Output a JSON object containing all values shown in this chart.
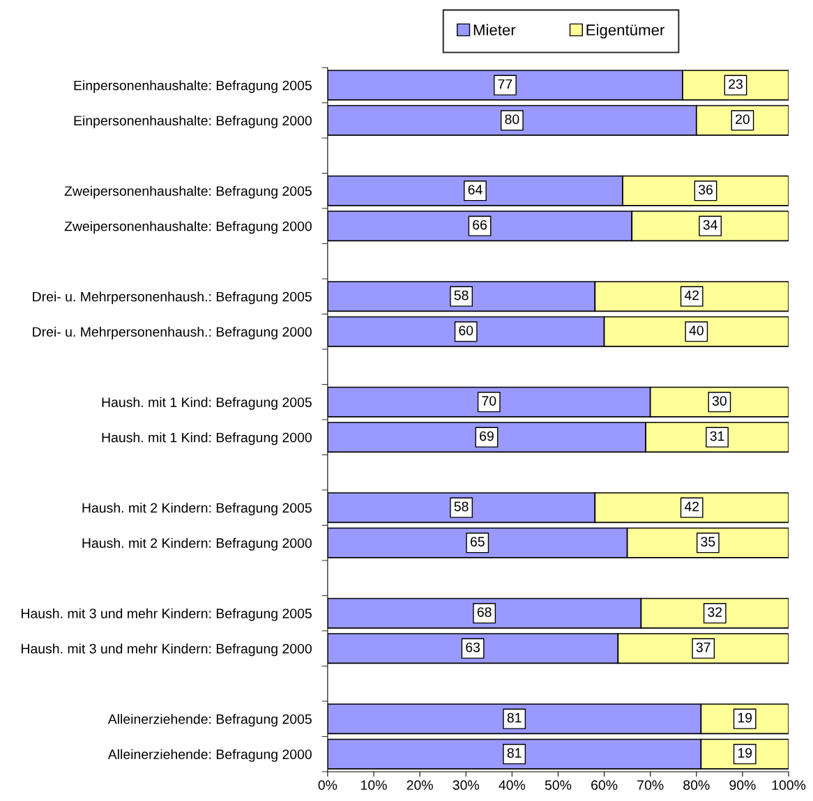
{
  "chart_data": {
    "type": "bar",
    "orientation": "horizontal",
    "stacked": true,
    "data_labels": true,
    "legend": "top",
    "grid": false,
    "categories": [
      "Einpersonenhaushalte: Befragung 2005",
      "Einpersonenhaushalte: Befragung 2000",
      null,
      "Zweipersonenhaushalte: Befragung 2005",
      "Zweipersonenhaushalte: Befragung 2000",
      null,
      "Drei- u. Mehrpersonenhaush.: Befragung 2005",
      "Drei- u. Mehrpersonenhaush.: Befragung 2000",
      null,
      "Haush. mit 1 Kind: Befragung 2005",
      "Haush. mit 1 Kind: Befragung 2000",
      null,
      "Haush. mit 2 Kindern: Befragung 2005",
      "Haush. mit 2 Kindern: Befragung 2000",
      null,
      "Haush. mit 3 und mehr Kindern: Befragung 2005",
      "Haush. mit 3 und mehr Kindern: Befragung 2000",
      null,
      "Alleinerziehende: Befragung 2005",
      "Alleinerziehende: Befragung 2000"
    ],
    "series": [
      {
        "name": "Mieter",
        "color": "#9999ff",
        "values": [
          77,
          80,
          null,
          64,
          66,
          null,
          58,
          60,
          null,
          70,
          69,
          null,
          58,
          65,
          null,
          68,
          63,
          null,
          81,
          81
        ]
      },
      {
        "name": "Eigentümer",
        "color": "#ffff99",
        "values": [
          23,
          20,
          null,
          36,
          34,
          null,
          42,
          40,
          null,
          30,
          31,
          null,
          42,
          35,
          null,
          32,
          37,
          null,
          19,
          19
        ]
      }
    ],
    "xlim": [
      0,
      100
    ],
    "xticks": [
      {
        "value": 0,
        "label": "0%"
      },
      {
        "value": 10,
        "label": "10%"
      },
      {
        "value": 20,
        "label": "20%"
      },
      {
        "value": 30,
        "label": "30%"
      },
      {
        "value": 40,
        "label": "40%"
      },
      {
        "value": 50,
        "label": "50%"
      },
      {
        "value": 60,
        "label": "60%"
      },
      {
        "value": 70,
        "label": "70%"
      },
      {
        "value": 80,
        "label": "80%"
      },
      {
        "value": 90,
        "label": "90%"
      },
      {
        "value": 100,
        "label": "100%"
      }
    ]
  }
}
